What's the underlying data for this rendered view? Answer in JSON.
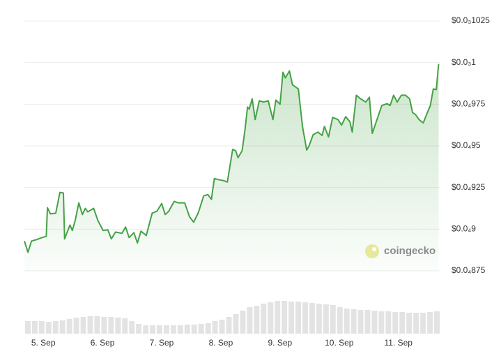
{
  "chart_data": {
    "type": "line",
    "x": [
      4.68,
      4.74,
      4.8,
      4.88,
      4.98,
      5.05,
      5.07,
      5.12,
      5.21,
      5.28,
      5.34,
      5.36,
      5.45,
      5.49,
      5.54,
      5.6,
      5.66,
      5.71,
      5.75,
      5.85,
      5.92,
      6.01,
      6.09,
      6.15,
      6.22,
      6.33,
      6.39,
      6.45,
      6.53,
      6.59,
      6.65,
      6.74,
      6.84,
      6.92,
      7.0,
      7.06,
      7.12,
      7.21,
      7.28,
      7.39,
      7.47,
      7.54,
      7.62,
      7.71,
      7.78,
      7.84,
      7.89,
      7.98,
      8.04,
      8.11,
      8.2,
      8.25,
      8.29,
      8.36,
      8.41,
      8.45,
      8.48,
      8.53,
      8.58,
      8.65,
      8.72,
      8.8,
      8.88,
      8.93,
      9.0,
      9.05,
      9.09,
      9.16,
      9.21,
      9.31,
      9.38,
      9.45,
      9.49,
      9.56,
      9.64,
      9.71,
      9.75,
      9.82,
      9.89,
      9.98,
      10.04,
      10.11,
      10.18,
      10.22,
      10.29,
      10.36,
      10.45,
      10.51,
      10.56,
      10.62,
      10.72,
      10.81,
      10.86,
      10.92,
      10.98,
      11.05,
      11.12,
      11.19,
      11.24,
      11.29,
      11.35,
      11.42,
      11.49,
      11.54,
      11.59,
      11.64,
      11.68
    ],
    "series": [
      {
        "color": "#45a146",
        "values": [
          8.929e-05,
          8.862e-05,
          8.929e-05,
          8.937e-05,
          8.95e-05,
          8.958e-05,
          9.129e-05,
          9.092e-05,
          9.096e-05,
          9.221e-05,
          9.217e-05,
          8.942e-05,
          9.025e-05,
          8.992e-05,
          9.054e-05,
          9.158e-05,
          9.088e-05,
          9.125e-05,
          9.104e-05,
          9.125e-05,
          9.054e-05,
          8.992e-05,
          8.996e-05,
          8.942e-05,
          8.983e-05,
          8.975e-05,
          9.013e-05,
          8.95e-05,
          8.979e-05,
          8.917e-05,
          8.988e-05,
          8.962e-05,
          9.096e-05,
          9.108e-05,
          9.154e-05,
          9.088e-05,
          9.108e-05,
          9.167e-05,
          9.158e-05,
          9.158e-05,
          9.075e-05,
          9.042e-05,
          9.1e-05,
          9.2e-05,
          9.208e-05,
          9.179e-05,
          9.304e-05,
          9.296e-05,
          9.292e-05,
          9.283e-05,
          9.479e-05,
          9.471e-05,
          9.429e-05,
          9.471e-05,
          9.604e-05,
          9.733e-05,
          9.721e-05,
          9.783e-05,
          9.658e-05,
          9.771e-05,
          9.763e-05,
          9.771e-05,
          9.658e-05,
          9.775e-05,
          9.75e-05,
          9.942e-05,
          9.908e-05,
          9.95e-05,
          9.867e-05,
          9.842e-05,
          9.617e-05,
          9.475e-05,
          9.5e-05,
          9.567e-05,
          9.583e-05,
          9.563e-05,
          9.617e-05,
          9.554e-05,
          9.671e-05,
          9.658e-05,
          9.625e-05,
          9.675e-05,
          9.646e-05,
          9.583e-05,
          9.804e-05,
          9.783e-05,
          9.763e-05,
          9.792e-05,
          9.575e-05,
          9.638e-05,
          9.742e-05,
          9.754e-05,
          9.742e-05,
          9.804e-05,
          9.763e-05,
          9.804e-05,
          9.804e-05,
          9.783e-05,
          9.7e-05,
          9.688e-05,
          9.658e-05,
          9.638e-05,
          9.7e-05,
          9.742e-05,
          9.842e-05,
          9.838e-05,
          9.992e-05
        ]
      }
    ],
    "xlim": [
      4.68,
      11.71
    ],
    "xticks": [
      {
        "value": 5,
        "label": "5. Sep"
      },
      {
        "value": 6,
        "label": "6. Sep"
      },
      {
        "value": 7,
        "label": "7. Sep"
      },
      {
        "value": 8,
        "label": "8. Sep"
      },
      {
        "value": 9,
        "label": "9. Sep"
      },
      {
        "value": 10,
        "label": "10. Sep"
      },
      {
        "value": 11,
        "label": "11. Sep"
      }
    ],
    "ylim": [
      8.75e-05,
      0.0001025
    ],
    "yticks": [
      {
        "value": 0.0001025,
        "label": "$0.0₃1025"
      },
      {
        "value": 0.0001,
        "label": "$0.0₃1"
      },
      {
        "value": 9.75e-05,
        "label": "$0.0₄975"
      },
      {
        "value": 9.5e-05,
        "label": "$0.0₄95"
      },
      {
        "value": 9.25e-05,
        "label": "$0.0₄925"
      },
      {
        "value": 9e-05,
        "label": "$0.0₄9"
      },
      {
        "value": 8.75e-05,
        "label": "$0.0₄875"
      }
    ],
    "grid": true,
    "volume": {
      "color": "#e3e3e3",
      "values": [
        18,
        18,
        18,
        17,
        18,
        19,
        21,
        23,
        24,
        25,
        25,
        24,
        24,
        23,
        22,
        18,
        14,
        12,
        12,
        12,
        12,
        12,
        12,
        13,
        13,
        14,
        15,
        18,
        20,
        24,
        28,
        33,
        38,
        40,
        43,
        45,
        47,
        47,
        46,
        46,
        45,
        44,
        43,
        42,
        41,
        38,
        36,
        35,
        34,
        34,
        33,
        32,
        32,
        31,
        31,
        30,
        30,
        30,
        31,
        32
      ]
    },
    "watermark": "coingecko"
  }
}
